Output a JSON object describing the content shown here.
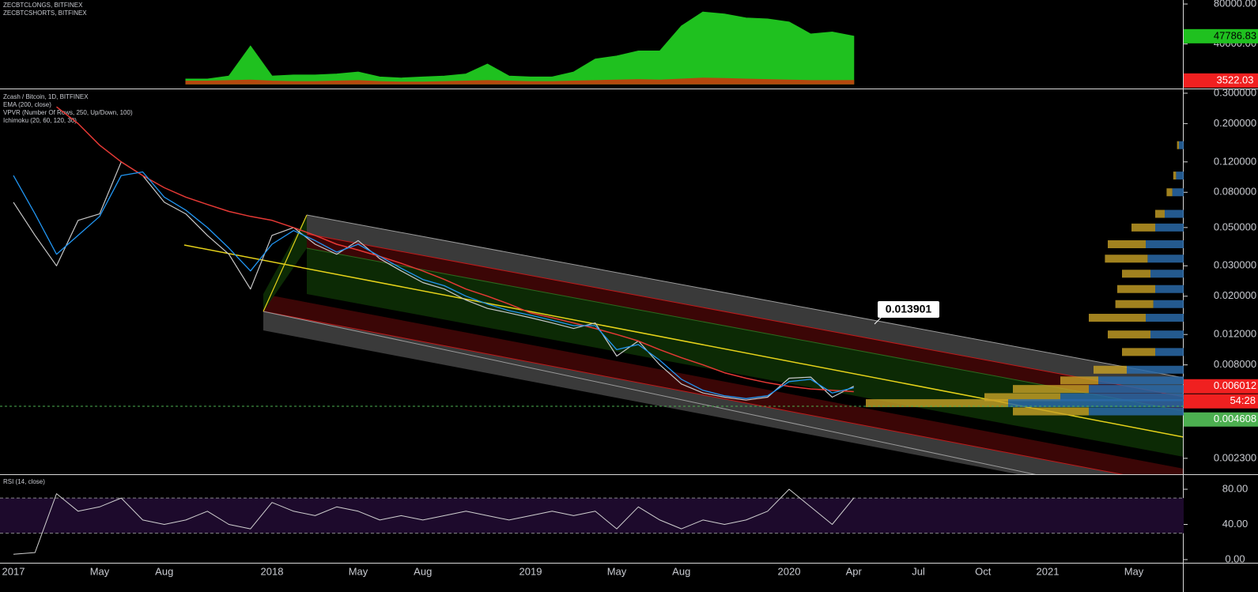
{
  "chart_data": [
    {
      "type": "area",
      "x": [
        "2017-09",
        "2017-10",
        "2017-11",
        "2017-12",
        "2018-01",
        "2018-02",
        "2018-03",
        "2018-04",
        "2018-05",
        "2018-06",
        "2018-07",
        "2018-08",
        "2018-09",
        "2018-10",
        "2018-11",
        "2018-12",
        "2019-01",
        "2019-02",
        "2019-03",
        "2019-04",
        "2019-05",
        "2019-06",
        "2019-07",
        "2019-08",
        "2019-09",
        "2019-10",
        "2019-11",
        "2019-12",
        "2020-01",
        "2020-02",
        "2020-03",
        "2020-04"
      ],
      "series": [
        {
          "name": "ZECBTCLONGS, BITFINEX",
          "color": "#1fc11f",
          "values": [
            5000,
            5000,
            8000,
            38000,
            8000,
            9000,
            9000,
            10000,
            12000,
            7000,
            6000,
            7000,
            8000,
            10000,
            20000,
            8000,
            7000,
            7000,
            12000,
            25000,
            28000,
            33000,
            33000,
            58000,
            72000,
            70000,
            66000,
            65000,
            62000,
            50000,
            52000,
            47786.83
          ]
        },
        {
          "name": "ZECBTCSHORTS, BITFINEX",
          "color": "#b5480e",
          "values": [
            3000,
            3000,
            3500,
            4000,
            3000,
            2500,
            2500,
            3000,
            3500,
            2500,
            2000,
            2000,
            2500,
            3000,
            3500,
            3000,
            2500,
            2500,
            3000,
            3500,
            4000,
            4500,
            4000,
            5000,
            6000,
            5500,
            5000,
            4500,
            4000,
            3500,
            3500,
            3522.03
          ]
        }
      ],
      "ylim": [
        -4500,
        84000
      ],
      "yticks": [
        {
          "value": 40000,
          "label": "40000.00"
        },
        {
          "value": 80000,
          "label": "80000.00"
        }
      ]
    },
    {
      "type": "line",
      "yscale": "log",
      "x": [
        "2017-01",
        "2017-02",
        "2017-03",
        "2017-04",
        "2017-05",
        "2017-06",
        "2017-07",
        "2017-08",
        "2017-09",
        "2017-10",
        "2017-11",
        "2017-12",
        "2018-01",
        "2018-02",
        "2018-03",
        "2018-04",
        "2018-05",
        "2018-06",
        "2018-07",
        "2018-08",
        "2018-09",
        "2018-10",
        "2018-11",
        "2018-12",
        "2019-01",
        "2019-02",
        "2019-03",
        "2019-04",
        "2019-05",
        "2019-06",
        "2019-07",
        "2019-08",
        "2019-09",
        "2019-10",
        "2019-11",
        "2019-12",
        "2020-01",
        "2020-02",
        "2020-03",
        "2020-04"
      ],
      "series": [
        {
          "name": "Zcash / Bitcoin, 1D, BITFINEX",
          "color": "#c8c8c8",
          "values": [
            0.07,
            0.045,
            0.03,
            0.055,
            0.06,
            0.12,
            0.1,
            0.07,
            0.06,
            0.045,
            0.035,
            0.022,
            0.045,
            0.05,
            0.04,
            0.035,
            0.042,
            0.033,
            0.028,
            0.024,
            0.022,
            0.019,
            0.017,
            0.016,
            0.015,
            0.014,
            0.013,
            0.014,
            0.009,
            0.011,
            0.008,
            0.0062,
            0.0055,
            0.0052,
            0.005,
            0.0052,
            0.0067,
            0.0068,
            0.0052,
            0.006012
          ]
        },
        {
          "name": "EMA (200, close)",
          "color": "#e53935",
          "values": [
            null,
            null,
            0.25,
            0.2,
            0.15,
            0.12,
            0.1,
            0.085,
            0.075,
            0.068,
            0.062,
            0.058,
            0.055,
            0.05,
            0.045,
            0.04,
            0.037,
            0.034,
            0.031,
            0.028,
            0.025,
            0.022,
            0.02,
            0.018,
            0.016,
            0.015,
            0.014,
            0.013,
            0.012,
            0.011,
            0.0098,
            0.0088,
            0.008,
            0.0072,
            0.0067,
            0.0063,
            0.006,
            0.0058,
            0.0057,
            0.0056
          ]
        },
        {
          "name": "Ichimoku (20, 60, 120, 30)",
          "color": "#2196f3",
          "values": [
            0.1,
            0.06,
            0.035,
            0.045,
            0.058,
            0.1,
            0.105,
            0.075,
            0.063,
            0.05,
            0.038,
            0.028,
            0.04,
            0.048,
            0.042,
            0.036,
            0.04,
            0.034,
            0.029,
            0.025,
            0.023,
            0.02,
            0.018,
            0.0165,
            0.0155,
            0.0145,
            0.0135,
            0.0135,
            0.0098,
            0.0105,
            0.0085,
            0.0066,
            0.0057,
            0.0053,
            0.0051,
            0.0053,
            0.0064,
            0.0066,
            0.0055,
            0.0059
          ]
        }
      ],
      "ylim": [
        0.00186,
        0.316
      ],
      "yticks": [
        {
          "value": 0.0023,
          "label": "0.002300"
        },
        {
          "value": 0.008,
          "label": "0.008000"
        },
        {
          "value": 0.012,
          "label": "0.012000"
        },
        {
          "value": 0.02,
          "label": "0.020000"
        },
        {
          "value": 0.03,
          "label": "0.030000"
        },
        {
          "value": 0.05,
          "label": "0.050000"
        },
        {
          "value": 0.08,
          "label": "0.080000"
        },
        {
          "value": 0.12,
          "label": "0.120000"
        },
        {
          "value": 0.2,
          "label": "0.200000"
        },
        {
          "value": 0.3,
          "label": "0.300000"
        }
      ],
      "hline": 0.004608,
      "countdown": "54:28",
      "annotation": "0.013901",
      "volume_profile": {
        "name": "VPVR (Number Of Rows, 250, Up/Down, 100)",
        "up_color": "#2a6aa8",
        "down_color": "#c9a227",
        "prices": [
          0.15,
          0.1,
          0.08,
          0.06,
          0.05,
          0.04,
          0.033,
          0.027,
          0.022,
          0.018,
          0.015,
          0.012,
          0.0095,
          0.0075,
          0.0065,
          0.0058,
          0.0052,
          0.0048,
          0.0043
        ],
        "up": [
          5,
          8,
          12,
          20,
          30,
          40,
          38,
          35,
          30,
          32,
          40,
          35,
          30,
          60,
          90,
          100,
          130,
          185,
          100
        ],
        "down": [
          2,
          3,
          6,
          10,
          25,
          40,
          45,
          30,
          40,
          40,
          60,
          45,
          35,
          35,
          40,
          80,
          80,
          150,
          80
        ]
      }
    },
    {
      "type": "line",
      "x": [
        "2017-01",
        "2017-02",
        "2017-03",
        "2017-04",
        "2017-05",
        "2017-06",
        "2017-07",
        "2017-08",
        "2017-09",
        "2017-10",
        "2017-11",
        "2017-12",
        "2018-01",
        "2018-02",
        "2018-03",
        "2018-04",
        "2018-05",
        "2018-06",
        "2018-07",
        "2018-08",
        "2018-09",
        "2018-10",
        "2018-11",
        "2018-12",
        "2019-01",
        "2019-02",
        "2019-03",
        "2019-04",
        "2019-05",
        "2019-06",
        "2019-07",
        "2019-08",
        "2019-09",
        "2019-10",
        "2019-11",
        "2019-12",
        "2020-01",
        "2020-02",
        "2020-03",
        "2020-04"
      ],
      "series": [
        {
          "name": "RSI (14, close)",
          "color": "#d0d0d0",
          "values": [
            6,
            8,
            75,
            55,
            60,
            70,
            45,
            40,
            45,
            55,
            40,
            35,
            65,
            55,
            50,
            60,
            55,
            45,
            50,
            45,
            50,
            55,
            50,
            45,
            50,
            55,
            50,
            55,
            35,
            60,
            45,
            35,
            45,
            40,
            45,
            55,
            80,
            60,
            40,
            70
          ]
        }
      ],
      "ylim": [
        -3.6,
        96.2
      ],
      "yticks": [
        {
          "value": 0,
          "label": "0.00"
        },
        {
          "value": 40,
          "label": "40.00"
        },
        {
          "value": 80,
          "label": "80.00"
        }
      ],
      "band": [
        30,
        70
      ],
      "xticks": [
        {
          "value": "2017-01",
          "label": "2017"
        },
        {
          "value": "2017-05",
          "label": "May"
        },
        {
          "value": "2017-08",
          "label": "Aug"
        },
        {
          "value": "2018-01",
          "label": "2018"
        },
        {
          "value": "2018-05",
          "label": "May"
        },
        {
          "value": "2018-08",
          "label": "Aug"
        },
        {
          "value": "2019-01",
          "label": "2019"
        },
        {
          "value": "2019-05",
          "label": "May"
        },
        {
          "value": "2019-08",
          "label": "Aug"
        },
        {
          "value": "2020-01",
          "label": "2020"
        },
        {
          "value": "2020-04",
          "label": "Apr"
        },
        {
          "value": "2020-07",
          "label": "Jul"
        },
        {
          "value": "2020-10",
          "label": "Oct"
        },
        {
          "value": "2021-01",
          "label": "2021"
        },
        {
          "value": "2021-05",
          "label": "May"
        }
      ]
    }
  ]
}
